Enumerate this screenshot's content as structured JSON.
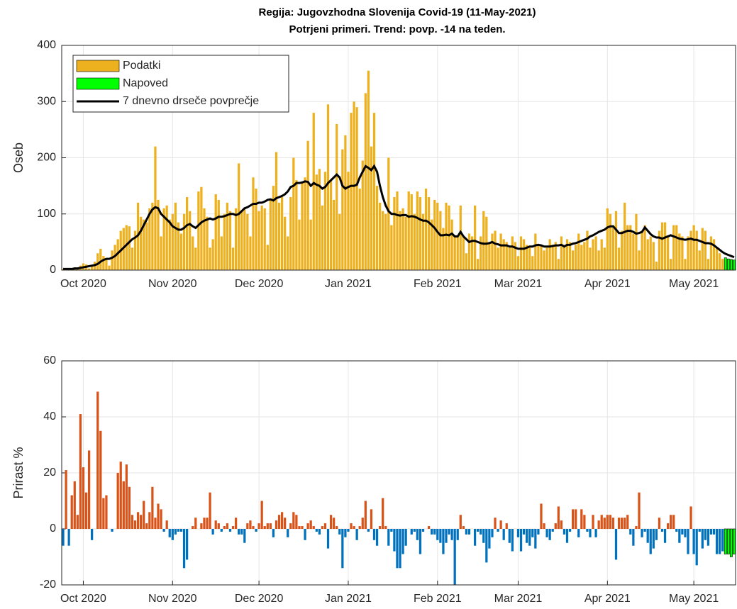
{
  "chart_data": [
    {
      "type": "bar",
      "title": "Regija: Jugovzhodna Slovenija Covid-19 (11-May-2021)",
      "subtitle": "Potrjeni primeri. Trend: povp. -14 na teden.",
      "y_label": "Oseb",
      "xlim": [
        -0.5,
        233.5
      ],
      "xticks": [
        {
          "value": 7,
          "label": "Oct 2020"
        },
        {
          "value": 38,
          "label": "Nov 2020"
        },
        {
          "value": 68,
          "label": "Dec 2020"
        },
        {
          "value": 99,
          "label": "Jan 2021"
        },
        {
          "value": 130,
          "label": "Feb 2021"
        },
        {
          "value": 158,
          "label": "Mar 2021"
        },
        {
          "value": 189,
          "label": "Apr 2021"
        },
        {
          "value": 219,
          "label": "May 2021"
        }
      ],
      "ylim": [
        0,
        400
      ],
      "yticks": [
        0,
        100,
        200,
        300,
        400
      ],
      "grid": true,
      "legend": "top-left",
      "series": [
        {
          "name": "Podatki",
          "color": "#edb120",
          "values": [
            2,
            2,
            1,
            3,
            5,
            4,
            8,
            12,
            10,
            3,
            8,
            15,
            30,
            38,
            25,
            20,
            8,
            35,
            45,
            55,
            70,
            75,
            80,
            78,
            40,
            70,
            120,
            95,
            90,
            85,
            110,
            120,
            220,
            125,
            60,
            110,
            115,
            90,
            100,
            120,
            85,
            65,
            100,
            130,
            105,
            60,
            40,
            140,
            148,
            110,
            95,
            40,
            55,
            135,
            125,
            60,
            100,
            120,
            105,
            40,
            110,
            190,
            105,
            110,
            100,
            60,
            165,
            145,
            105,
            115,
            110,
            45,
            125,
            150,
            210,
            120,
            130,
            95,
            60,
            130,
            200,
            160,
            90,
            155,
            165,
            230,
            90,
            280,
            170,
            180,
            115,
            175,
            295,
            160,
            125,
            260,
            100,
            215,
            240,
            175,
            280,
            300,
            290,
            145,
            195,
            315,
            355,
            220,
            280,
            150,
            120,
            105,
            100,
            200,
            80,
            130,
            140,
            105,
            110,
            95,
            140,
            135,
            100,
            140,
            130,
            100,
            145,
            130,
            90,
            125,
            120,
            105,
            75,
            120,
            115,
            90,
            60,
            60,
            115,
            60,
            30,
            65,
            60,
            115,
            20,
            60,
            105,
            95,
            50,
            65,
            70,
            40,
            65,
            55,
            50,
            40,
            60,
            50,
            25,
            60,
            55,
            45,
            40,
            25,
            65,
            45,
            45,
            35,
            40,
            55,
            45,
            50,
            20,
            60,
            45,
            55,
            50,
            35,
            45,
            65,
            45,
            50,
            70,
            40,
            55,
            60,
            35,
            55,
            40,
            110,
            100,
            80,
            105,
            40,
            70,
            120,
            80,
            80,
            65,
            100,
            35,
            70,
            80,
            55,
            60,
            50,
            15,
            70,
            85,
            85,
            60,
            20,
            80,
            80,
            65,
            60,
            20,
            60,
            70,
            80,
            70,
            35,
            75,
            70,
            20,
            60,
            55,
            40,
            30,
            20
          ]
        },
        {
          "name": "Napoved",
          "color": "#00ff00",
          "x": [
            230,
            231,
            232,
            233
          ],
          "values": [
            22,
            20,
            19,
            18
          ]
        },
        {
          "name": "7 dnevno drseče povprečje",
          "type": "line",
          "color": "#000000",
          "values": [
            2,
            2,
            2,
            2,
            3,
            3,
            4,
            5,
            6,
            7,
            8,
            9,
            11,
            15,
            18,
            20,
            20,
            22,
            25,
            30,
            35,
            40,
            45,
            50,
            55,
            58,
            62,
            70,
            80,
            90,
            100,
            108,
            112,
            110,
            100,
            95,
            90,
            85,
            78,
            75,
            72,
            72,
            75,
            80,
            82,
            78,
            75,
            80,
            85,
            88,
            90,
            92,
            90,
            92,
            95,
            95,
            96,
            98,
            100,
            100,
            98,
            100,
            105,
            110,
            112,
            115,
            118,
            118,
            120,
            120,
            122,
            125,
            126,
            124,
            128,
            130,
            132,
            135,
            140,
            148,
            150,
            155,
            155,
            156,
            158,
            157,
            150,
            155,
            152,
            150,
            145,
            148,
            155,
            160,
            165,
            170,
            165,
            150,
            145,
            148,
            150,
            150,
            152,
            165,
            175,
            185,
            182,
            178,
            185,
            175,
            150,
            130,
            115,
            105,
            100,
            100,
            98,
            97,
            98,
            98,
            95,
            96,
            95,
            93,
            90,
            88,
            88,
            85,
            80,
            75,
            68,
            62,
            62,
            63,
            62,
            65,
            60,
            60,
            68,
            60,
            55,
            50,
            52,
            52,
            50,
            48,
            47,
            47,
            48,
            50,
            47,
            46,
            44,
            44,
            44,
            42,
            42,
            40,
            38,
            38,
            38,
            40,
            42,
            42,
            44,
            45,
            44,
            42,
            42,
            42,
            43,
            44,
            44,
            45,
            42,
            45,
            45,
            47,
            48,
            50,
            52,
            54,
            56,
            60,
            62,
            65,
            68,
            70,
            72,
            76,
            78,
            78,
            72,
            66,
            66,
            68,
            70,
            70,
            68,
            65,
            66,
            68,
            76,
            70,
            64,
            60,
            58,
            58,
            56,
            58,
            60,
            62,
            60,
            58,
            56,
            55,
            54,
            55,
            56,
            54,
            54,
            52,
            50,
            48,
            48,
            47,
            44,
            40,
            36,
            32,
            29,
            27,
            25,
            23
          ]
        }
      ]
    },
    {
      "type": "bar",
      "y_label": "Prirast %",
      "xlim": [
        -0.5,
        233.5
      ],
      "xticks": [
        {
          "value": 7,
          "label": "Oct 2020"
        },
        {
          "value": 38,
          "label": "Nov 2020"
        },
        {
          "value": 68,
          "label": "Dec 2020"
        },
        {
          "value": 99,
          "label": "Jan 2021"
        },
        {
          "value": 130,
          "label": "Feb 2021"
        },
        {
          "value": 158,
          "label": "Mar 2021"
        },
        {
          "value": 189,
          "label": "Apr 2021"
        },
        {
          "value": 219,
          "label": "May 2021"
        }
      ],
      "ylim": [
        -20,
        60
      ],
      "yticks": [
        -20,
        0,
        20,
        40,
        60
      ],
      "grid": true,
      "series": [
        {
          "color": "#d95319",
          "negative_color": "#0072bd",
          "values": [
            -6,
            21,
            -6,
            12,
            17,
            5,
            41,
            22,
            13,
            28,
            -4,
            0,
            49,
            35,
            11,
            12,
            0,
            -1,
            0,
            20,
            24,
            17,
            23,
            15,
            5,
            3,
            6,
            5,
            10,
            2,
            6,
            15,
            4,
            9,
            7,
            -1,
            3,
            -3,
            -4,
            -2,
            -1,
            -1,
            -14,
            -11,
            0,
            1,
            4,
            0,
            2,
            4,
            4,
            13,
            -2,
            3,
            2,
            -1,
            1,
            2,
            -1,
            1,
            4,
            -2,
            -2,
            -5,
            2,
            3,
            1,
            -1,
            2,
            10,
            1,
            2,
            2,
            -3,
            3,
            5,
            6,
            4,
            -3,
            2,
            6,
            5,
            1,
            1,
            -4,
            2,
            3,
            1,
            -1,
            -2,
            1,
            2,
            -7,
            5,
            4,
            1,
            -2,
            -14,
            -3,
            -1,
            2,
            1,
            -4,
            1,
            4,
            10,
            -1,
            7,
            -4,
            -6,
            1,
            11,
            1,
            -6,
            -1,
            -8,
            -14,
            -14,
            -9,
            -6,
            0,
            -2,
            -1,
            -4,
            -9,
            -1,
            0,
            1,
            -2,
            -2,
            -4,
            -5,
            -9,
            -5,
            -2,
            -4,
            -20,
            -4,
            5,
            1,
            -2,
            -2,
            0,
            -6,
            -1,
            -2,
            -5,
            -12,
            -7,
            -3,
            4,
            -1,
            3,
            -4,
            2,
            -5,
            -8,
            0,
            -3,
            -8,
            -2,
            -5,
            -6,
            -3,
            -7,
            -2,
            9,
            2,
            -3,
            -4,
            -1,
            2,
            8,
            3,
            -2,
            -5,
            -1,
            7,
            7,
            -3,
            7,
            5,
            -1,
            -3,
            5,
            -3,
            3,
            5,
            4,
            5,
            5,
            4,
            -11,
            4,
            4,
            4,
            5,
            -2,
            -6,
            1,
            13,
            -3,
            -1,
            -5,
            -9,
            -7,
            -4,
            4,
            -1,
            -5,
            2,
            5,
            5,
            -1,
            -5,
            -2,
            -3,
            -9,
            8,
            -9,
            -13,
            -1,
            -7,
            -4,
            -6,
            -2,
            -2,
            -9,
            -9,
            -8
          ]
        },
        {
          "color": "#00ff00",
          "x": [
            230,
            231,
            232,
            233
          ],
          "values": [
            -9,
            -9,
            -10,
            -9
          ]
        }
      ]
    }
  ]
}
